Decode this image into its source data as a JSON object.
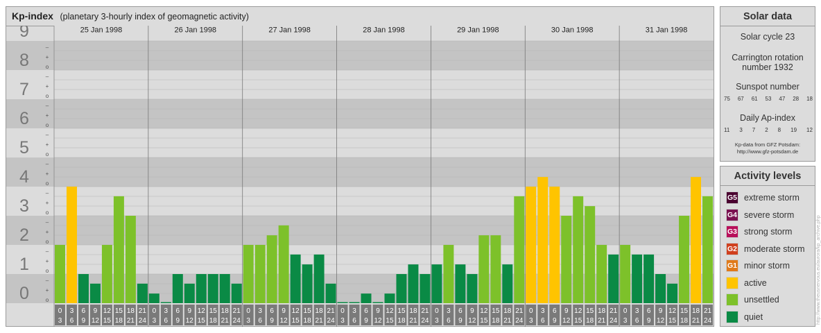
{
  "title": {
    "main": "Kp-index",
    "sub": "(planetary 3-hourly index of geomagnetic activity)"
  },
  "chart_data": {
    "type": "bar",
    "ylim": [
      0,
      9
    ],
    "y_ticks": [
      "0",
      "1",
      "2",
      "3",
      "4",
      "5",
      "6",
      "7",
      "8",
      "9"
    ],
    "minor_tick_marks": [
      "o",
      "+",
      "–"
    ],
    "days": [
      "25 Jan 1998",
      "26 Jan 1998",
      "27 Jan 1998",
      "28 Jan 1998",
      "29 Jan 1998",
      "30 Jan 1998",
      "31 Jan 1998"
    ],
    "interval_start": [
      "0",
      "3",
      "6",
      "9",
      "12",
      "15",
      "18",
      "21"
    ],
    "interval_end": [
      "3",
      "6",
      "9",
      "12",
      "15",
      "18",
      "21",
      "24"
    ],
    "kp_values": [
      [
        2.0,
        4.0,
        1.0,
        0.67,
        2.0,
        3.67,
        3.0,
        0.67
      ],
      [
        0.33,
        0.0,
        1.0,
        0.67,
        1.0,
        1.0,
        1.0,
        0.67
      ],
      [
        2.0,
        2.0,
        2.33,
        2.67,
        1.67,
        1.33,
        1.67,
        0.67
      ],
      [
        0.0,
        0.0,
        0.33,
        0.0,
        0.33,
        1.0,
        1.33,
        1.0
      ],
      [
        1.33,
        2.0,
        1.33,
        1.0,
        2.33,
        2.33,
        1.33,
        3.67
      ],
      [
        4.0,
        4.33,
        4.0,
        3.0,
        3.67,
        3.33,
        2.0,
        1.67
      ],
      [
        2.0,
        1.67,
        1.67,
        1.0,
        0.67,
        3.0,
        4.33,
        3.67
      ]
    ]
  },
  "solar": {
    "header": "Solar data",
    "cycle": "Solar cycle 23",
    "carrington_line1": "Carrington rotation",
    "carrington_line2": "number 1932",
    "sunspot_label": "Sunspot number",
    "sunspot_values": [
      "75",
      "67",
      "61",
      "53",
      "47",
      "28",
      "18"
    ],
    "ap_label": "Daily Ap-index",
    "ap_values": [
      "11",
      "3",
      "7",
      "2",
      "8",
      "19",
      "12"
    ],
    "note_line1": "Kp-data from GFZ Potsdam:",
    "note_line2": "http://www.gfz-potsdam.de"
  },
  "levels": {
    "header": "Activity levels",
    "items": [
      {
        "badge": "G5",
        "label": "extreme storm",
        "color": "#4a0030"
      },
      {
        "badge": "G4",
        "label": "severe storm",
        "color": "#7a1050"
      },
      {
        "badge": "G3",
        "label": "strong storm",
        "color": "#b8105a"
      },
      {
        "badge": "G2",
        "label": "moderate storm",
        "color": "#d0401e"
      },
      {
        "badge": "G1",
        "label": "minor storm",
        "color": "#e07a1a"
      },
      {
        "badge": "",
        "label": "active",
        "color": "#ffc400"
      },
      {
        "badge": "",
        "label": "unsettled",
        "color": "#7dc12a"
      },
      {
        "badge": "",
        "label": "quiet",
        "color": "#0a8a45"
      }
    ]
  },
  "credit": "http://www.theusnervous.eu/aurora/kp_archive.php",
  "colors": {
    "quiet": "#0a8a45",
    "unsettled": "#7dc12a",
    "active": "#ffc400",
    "band_light": "#dcdcdc",
    "band_dark": "#c4c4c4",
    "axis_number": "#777777"
  }
}
